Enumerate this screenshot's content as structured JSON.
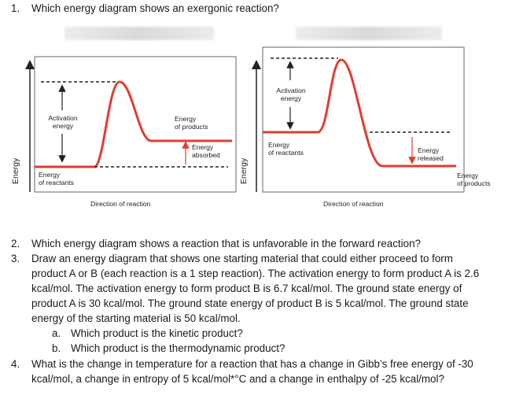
{
  "questions": {
    "q1": {
      "number": "1.",
      "text": "Which energy diagram shows an exergonic reaction?"
    },
    "q2": {
      "number": "2.",
      "text": "Which energy diagram shows a reaction that is unfavorable in the forward reaction?"
    },
    "q3": {
      "number": "3.",
      "lines": [
        "Draw an energy diagram that shows one starting material that could either proceed to form",
        "product A or B (each reaction is a 1 step reaction). The activation energy to form product A is 2.6",
        "kcal/mol. The activation energy to form product B is 6.7 kcal/mol. The ground state energy of",
        "product A is 30 kcal/mol. The ground state energy of product B is 5 kcal/mol. The ground state",
        "energy of the starting material is 50 kcal/mol."
      ],
      "a": {
        "letter": "a.",
        "text": "Which product is the kinetic product?"
      },
      "b": {
        "letter": "b.",
        "text": "Which product is the thermodynamic product?"
      }
    },
    "q4": {
      "number": "4.",
      "lines": [
        "What is the change in temperature for a reaction that has a change in Gibb’s free energy of -30",
        "kcal/mol, a change in entropy of 5 kcal/mol*°C and a change in enthalpy of -25 kcal/mol?"
      ]
    }
  },
  "diagram_left": {
    "y_axis": "Energy",
    "x_axis": "Direction of reaction",
    "activation_line1": "Activation",
    "activation_line2": "energy",
    "products_line1": "Energy",
    "products_line2": "of products",
    "delta_line1": "Energy",
    "delta_line2": "absorbed",
    "reactants_line1": "Energy",
    "reactants_line2": "of reactants"
  },
  "diagram_right": {
    "y_axis": "Energy",
    "x_axis": "Direction of reaction",
    "activation_line1": "Activation",
    "activation_line2": "energy",
    "reactants_line1": "Energy",
    "reactants_line2": "of reactants",
    "delta_line1": "Energy",
    "delta_line2": "released",
    "products_line1": "Energy",
    "products_line2": "of products"
  },
  "colors": {
    "curve": "#e03c31",
    "text": "#1a1a1a",
    "axis": "#222222"
  }
}
